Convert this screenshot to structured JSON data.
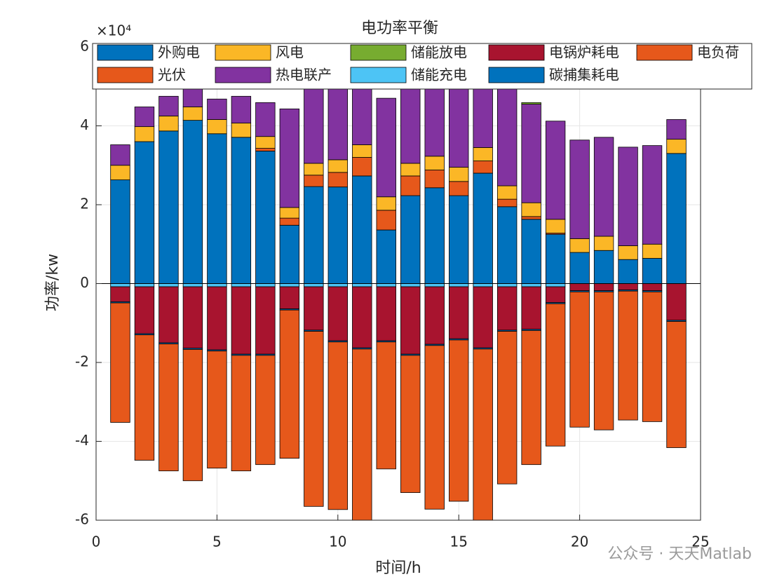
{
  "chart_data": {
    "type": "stacked_bar",
    "title": "电功率平衡",
    "y_exponent": "×10⁴",
    "xlabel": "时间/h",
    "ylabel": "功率/kw",
    "watermark": "公众号 · 天天Matlab",
    "categories": [
      1,
      2,
      3,
      4,
      5,
      6,
      7,
      8,
      9,
      10,
      11,
      12,
      13,
      14,
      15,
      16,
      17,
      18,
      19,
      20,
      21,
      22,
      23,
      24
    ],
    "xlim": [
      0,
      25
    ],
    "xticks": [
      0,
      5,
      10,
      15,
      20,
      25
    ],
    "ylim": [
      -6,
      6
    ],
    "yticks": [
      -6,
      -4,
      -2,
      0,
      2,
      4,
      6
    ],
    "grid": true,
    "legend": "top",
    "series": [
      {
        "name": "外购电",
        "color": "#0072bd",
        "values": [
          2.63,
          3.6,
          3.87,
          4.14,
          3.8,
          3.71,
          3.36,
          1.48,
          2.46,
          2.45,
          2.73,
          1.36,
          2.23,
          2.43,
          2.23,
          2.8,
          1.95,
          1.63,
          1.25,
          0.79,
          0.84,
          0.61,
          0.64,
          3.3
        ]
      },
      {
        "name": "光伏",
        "color": "#e6581b",
        "values": [
          0,
          0,
          0,
          0,
          0,
          0,
          0.07,
          0.18,
          0.29,
          0.37,
          0.47,
          0.5,
          0.5,
          0.45,
          0.36,
          0.31,
          0.19,
          0.07,
          0.03,
          0,
          0,
          0,
          0,
          0
        ]
      },
      {
        "name": "风电",
        "color": "#fbb726",
        "values": [
          0.37,
          0.38,
          0.38,
          0.34,
          0.36,
          0.36,
          0.3,
          0.27,
          0.3,
          0.32,
          0.32,
          0.34,
          0.32,
          0.35,
          0.36,
          0.34,
          0.34,
          0.35,
          0.35,
          0.35,
          0.36,
          0.35,
          0.36,
          0.36
        ]
      },
      {
        "name": "热电联产",
        "color": "#8233a0",
        "values": [
          0.52,
          0.5,
          0.5,
          0.52,
          0.52,
          0.68,
          0.86,
          2.5,
          2.6,
          2.59,
          2.58,
          2.5,
          2.25,
          2.49,
          2.57,
          2.58,
          2.6,
          2.5,
          2.49,
          2.5,
          2.51,
          2.5,
          2.5,
          0.5
        ]
      },
      {
        "name": "储能放电",
        "color": "#77ac30",
        "values": [
          0,
          0,
          0,
          0,
          0,
          0,
          0,
          0,
          0,
          0,
          0,
          0,
          0,
          0,
          0,
          0,
          0,
          0.04,
          0,
          0,
          0,
          0,
          0,
          0
        ]
      },
      {
        "name": "储能充电",
        "color": "#4dc4f5",
        "values": [
          -0.08,
          -0.08,
          -0.08,
          -0.08,
          -0.08,
          -0.08,
          -0.08,
          -0.08,
          -0.08,
          -0.08,
          -0.08,
          -0.08,
          -0.08,
          -0.08,
          -0.08,
          -0.08,
          -0.08,
          -0.08,
          -0.08,
          0,
          0,
          0,
          0,
          0
        ]
      },
      {
        "name": "电锅炉耗电",
        "color": "#a8142f",
        "values": [
          -0.38,
          -1.19,
          -1.42,
          -1.56,
          -1.6,
          -1.71,
          -1.71,
          -0.56,
          -1.1,
          -1.37,
          -1.55,
          -1.37,
          -1.71,
          -1.46,
          -1.32,
          -1.55,
          -1.1,
          -1.08,
          -0.4,
          -0.18,
          -0.18,
          -0.16,
          -0.18,
          -0.93
        ]
      },
      {
        "name": "碳捕集耗电",
        "color": "#0072bd",
        "values": [
          -0.03,
          -0.03,
          -0.03,
          -0.03,
          -0.03,
          -0.03,
          -0.03,
          -0.03,
          -0.03,
          -0.03,
          -0.03,
          -0.03,
          -0.03,
          -0.03,
          -0.03,
          -0.03,
          -0.03,
          -0.03,
          -0.03,
          -0.03,
          -0.03,
          -0.03,
          -0.03,
          -0.03
        ]
      },
      {
        "name": "电负荷",
        "color": "#e6581b",
        "values": [
          -3.03,
          -3.18,
          -3.22,
          -3.33,
          -2.97,
          -2.93,
          -2.77,
          -3.76,
          -4.44,
          -4.25,
          -4.44,
          -3.22,
          -3.48,
          -4.15,
          -4.09,
          -4.37,
          -3.87,
          -3.4,
          -3.61,
          -3.43,
          -3.5,
          -3.27,
          -3.29,
          -3.2
        ]
      }
    ]
  }
}
